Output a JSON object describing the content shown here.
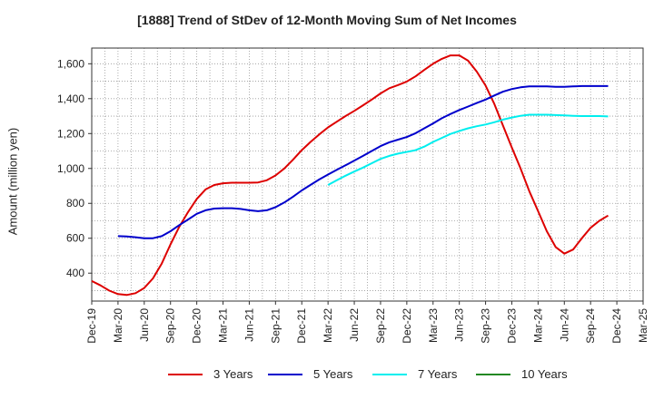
{
  "chart_data": {
    "type": "line",
    "title": "[1888]  Trend of StDev of 12-Month Moving Sum of Net Incomes",
    "xlabel": "",
    "ylabel": "Amount (million yen)",
    "ylim": [
      240,
      1690
    ],
    "yticks": [
      400,
      600,
      800,
      1000,
      1200,
      1400,
      1600
    ],
    "ytick_labels": [
      "400",
      "600",
      "800",
      "1,000",
      "1,200",
      "1,400",
      "1,600"
    ],
    "xtick_labels": [
      "Dec-19",
      "Mar-20",
      "Jun-20",
      "Sep-20",
      "Dec-20",
      "Mar-21",
      "Jun-21",
      "Sep-21",
      "Dec-21",
      "Mar-22",
      "Jun-22",
      "Sep-22",
      "Dec-22",
      "Mar-23",
      "Jun-23",
      "Sep-23",
      "Dec-23",
      "Mar-24",
      "Jun-24",
      "Sep-24",
      "Dec-24",
      "Mar-25"
    ],
    "grid": true,
    "legend_position": "bottom",
    "series": [
      {
        "name": "3 Years",
        "color": "#dd0000",
        "points": [
          [
            0,
            355
          ],
          [
            1,
            330
          ],
          [
            2,
            300
          ],
          [
            3,
            280
          ],
          [
            4,
            275
          ],
          [
            5,
            285
          ],
          [
            6,
            315
          ],
          [
            7,
            370
          ],
          [
            8,
            455
          ],
          [
            9,
            565
          ],
          [
            10,
            665
          ],
          [
            11,
            750
          ],
          [
            12,
            825
          ],
          [
            13,
            880
          ],
          [
            14,
            905
          ],
          [
            15,
            915
          ],
          [
            16,
            918
          ],
          [
            17,
            918
          ],
          [
            18,
            918
          ],
          [
            19,
            920
          ],
          [
            20,
            932
          ],
          [
            21,
            960
          ],
          [
            22,
            1000
          ],
          [
            23,
            1050
          ],
          [
            24,
            1105
          ],
          [
            25,
            1152
          ],
          [
            26,
            1195
          ],
          [
            27,
            1235
          ],
          [
            28,
            1268
          ],
          [
            29,
            1300
          ],
          [
            30,
            1330
          ],
          [
            31,
            1362
          ],
          [
            32,
            1395
          ],
          [
            33,
            1430
          ],
          [
            34,
            1460
          ],
          [
            35,
            1478
          ],
          [
            36,
            1498
          ],
          [
            37,
            1528
          ],
          [
            38,
            1565
          ],
          [
            39,
            1600
          ],
          [
            40,
            1628
          ],
          [
            41,
            1648
          ],
          [
            42,
            1648
          ],
          [
            43,
            1618
          ],
          [
            44,
            1555
          ],
          [
            45,
            1475
          ],
          [
            46,
            1370
          ],
          [
            47,
            1245
          ],
          [
            48,
            1120
          ],
          [
            49,
            1000
          ],
          [
            50,
            870
          ],
          [
            51,
            755
          ],
          [
            52,
            640
          ],
          [
            53,
            550
          ],
          [
            54,
            512
          ],
          [
            55,
            535
          ],
          [
            56,
            600
          ],
          [
            57,
            660
          ],
          [
            58,
            700
          ],
          [
            59,
            730
          ]
        ]
      },
      {
        "name": "5 Years",
        "color": "#0000cc",
        "points": [
          [
            3,
            612
          ],
          [
            4,
            610
          ],
          [
            5,
            606
          ],
          [
            6,
            600
          ],
          [
            7,
            600
          ],
          [
            8,
            612
          ],
          [
            9,
            640
          ],
          [
            10,
            675
          ],
          [
            11,
            707
          ],
          [
            12,
            740
          ],
          [
            13,
            760
          ],
          [
            14,
            770
          ],
          [
            15,
            772
          ],
          [
            16,
            772
          ],
          [
            17,
            768
          ],
          [
            18,
            760
          ],
          [
            19,
            755
          ],
          [
            20,
            760
          ],
          [
            21,
            778
          ],
          [
            22,
            805
          ],
          [
            23,
            838
          ],
          [
            24,
            874
          ],
          [
            25,
            906
          ],
          [
            26,
            937
          ],
          [
            27,
            965
          ],
          [
            28,
            992
          ],
          [
            29,
            1018
          ],
          [
            30,
            1045
          ],
          [
            31,
            1072
          ],
          [
            32,
            1100
          ],
          [
            33,
            1128
          ],
          [
            34,
            1150
          ],
          [
            35,
            1165
          ],
          [
            36,
            1180
          ],
          [
            37,
            1202
          ],
          [
            38,
            1230
          ],
          [
            39,
            1258
          ],
          [
            40,
            1288
          ],
          [
            41,
            1312
          ],
          [
            42,
            1335
          ],
          [
            43,
            1355
          ],
          [
            44,
            1375
          ],
          [
            45,
            1395
          ],
          [
            46,
            1418
          ],
          [
            47,
            1440
          ],
          [
            48,
            1455
          ],
          [
            49,
            1465
          ],
          [
            50,
            1470
          ],
          [
            51,
            1470
          ],
          [
            52,
            1470
          ],
          [
            53,
            1468
          ],
          [
            54,
            1468
          ],
          [
            55,
            1470
          ],
          [
            56,
            1472
          ],
          [
            57,
            1472
          ],
          [
            58,
            1472
          ],
          [
            59,
            1472
          ]
        ]
      },
      {
        "name": "7 Years",
        "color": "#00eeee",
        "points": [
          [
            27,
            905
          ],
          [
            28,
            932
          ],
          [
            29,
            958
          ],
          [
            30,
            982
          ],
          [
            31,
            1005
          ],
          [
            32,
            1030
          ],
          [
            33,
            1055
          ],
          [
            34,
            1072
          ],
          [
            35,
            1085
          ],
          [
            36,
            1095
          ],
          [
            37,
            1105
          ],
          [
            38,
            1125
          ],
          [
            39,
            1152
          ],
          [
            40,
            1175
          ],
          [
            41,
            1198
          ],
          [
            42,
            1215
          ],
          [
            43,
            1230
          ],
          [
            44,
            1242
          ],
          [
            45,
            1252
          ],
          [
            46,
            1265
          ],
          [
            47,
            1280
          ],
          [
            48,
            1292
          ],
          [
            49,
            1302
          ],
          [
            50,
            1308
          ],
          [
            51,
            1308
          ],
          [
            52,
            1308
          ],
          [
            53,
            1306
          ],
          [
            54,
            1304
          ],
          [
            55,
            1302
          ],
          [
            56,
            1300
          ],
          [
            57,
            1300
          ],
          [
            58,
            1300
          ],
          [
            59,
            1298
          ]
        ]
      },
      {
        "name": "10 Years",
        "color": "#228822",
        "points": []
      }
    ]
  }
}
